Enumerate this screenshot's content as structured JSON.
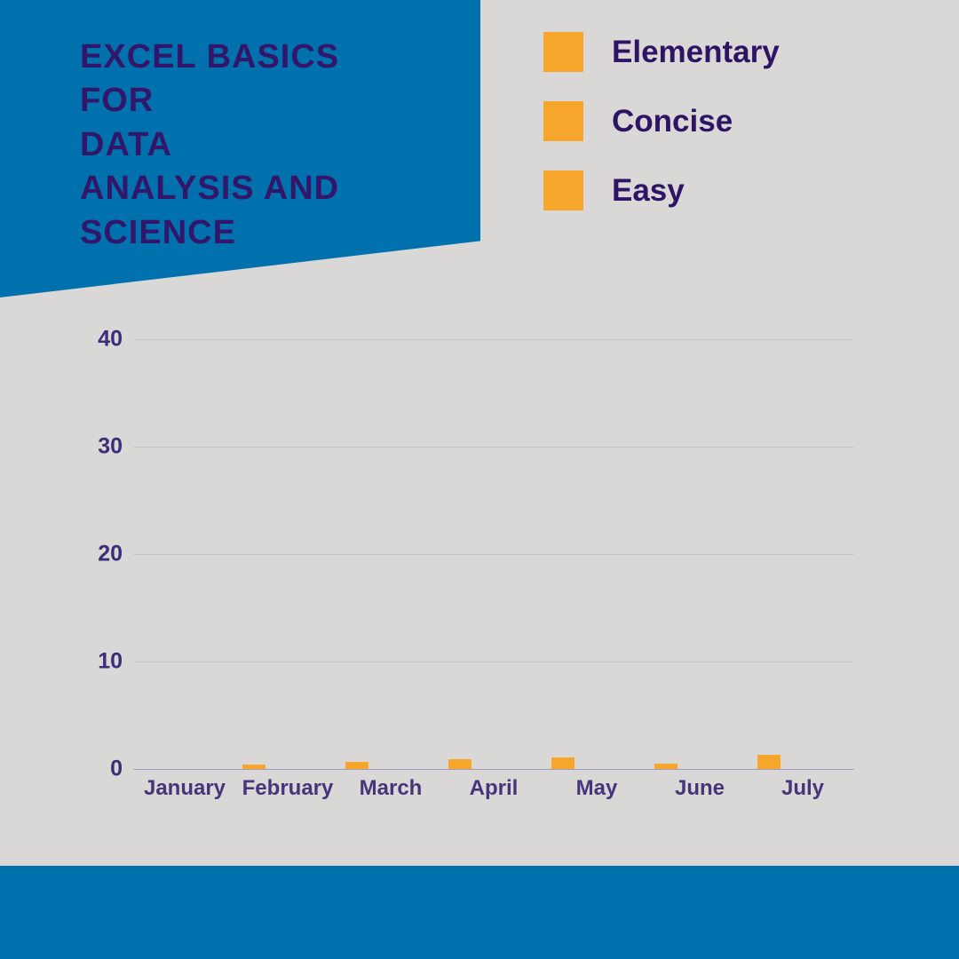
{
  "header": {
    "title_lines": [
      "EXCEL BASICS",
      "FOR",
      "DATA",
      "ANALYSIS AND",
      "SCIENCE"
    ]
  },
  "legend": {
    "items": [
      {
        "label": "Elementary",
        "color": "#f6a62a"
      },
      {
        "label": "Concise",
        "color": "#f6a62a"
      },
      {
        "label": "Easy",
        "color": "#f6a62a"
      }
    ]
  },
  "chart_data": {
    "type": "bar",
    "categories": [
      "January",
      "February",
      "March",
      "April",
      "May",
      "June",
      "July"
    ],
    "values": [
      0,
      0.4,
      0.7,
      0.9,
      1.1,
      0.5,
      1.3
    ],
    "title": "",
    "xlabel": "",
    "ylabel": "",
    "ylim": [
      0,
      40
    ],
    "yticks": [
      0,
      10,
      20,
      30,
      40
    ],
    "grid": true,
    "bar_color": "#f6a62a",
    "legend_position": "top-right",
    "legend_entries": [
      "Elementary",
      "Concise",
      "Easy"
    ]
  },
  "colors": {
    "banner_blue": "#0071ad",
    "footer_blue": "#0071ad",
    "background_gray": "#d9d8d6",
    "accent_orange": "#f6a62a",
    "text_purple": "#321669"
  }
}
